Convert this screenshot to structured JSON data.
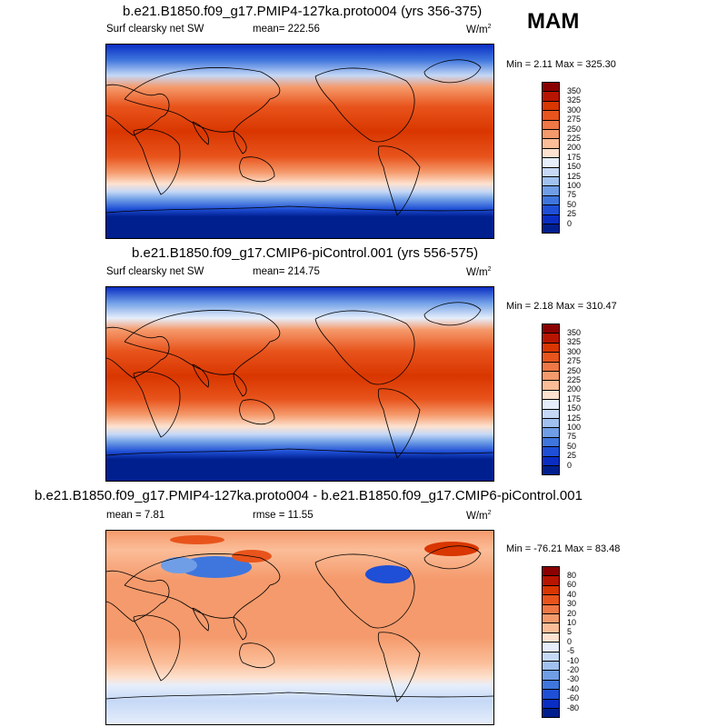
{
  "season": "MAM",
  "panels": [
    {
      "title": "b.e21.B1850.f09_g17.PMIP4-127ka.proto004 (yrs 356-375)",
      "left_label": "Surf clearsky net SW",
      "center_label": "mean= 222.56",
      "units": "W/m",
      "units_exp": "2",
      "minmax": "Min =   2.11 Max = 325.30",
      "colorbar": {
        "labels": [
          "350",
          "325",
          "300",
          "275",
          "250",
          "225",
          "200",
          "175",
          "150",
          "125",
          "100",
          "75",
          "50",
          "25",
          "0"
        ],
        "colors": [
          "#8b0000",
          "#b81500",
          "#d93600",
          "#e8541c",
          "#f07746",
          "#f59a6c",
          "#fbbd98",
          "#fde2d0",
          "#e6eefb",
          "#c5d8f6",
          "#a1c1f0",
          "#6f9ee6",
          "#3f76dd",
          "#1f4fd6",
          "#0a2ec4",
          "#001f8f"
        ]
      }
    },
    {
      "title": "b.e21.B1850.f09_g17.CMIP6-piControl.001 (yrs 556-575)",
      "left_label": "Surf clearsky net SW",
      "center_label": "mean= 214.75",
      "units": "W/m",
      "units_exp": "2",
      "minmax": "Min =   2.18 Max = 310.47",
      "colorbar": {
        "labels": [
          "350",
          "325",
          "300",
          "275",
          "250",
          "225",
          "200",
          "175",
          "150",
          "125",
          "100",
          "75",
          "50",
          "25",
          "0"
        ],
        "colors": [
          "#8b0000",
          "#b81500",
          "#d93600",
          "#e8541c",
          "#f07746",
          "#f59a6c",
          "#fbbd98",
          "#fde2d0",
          "#e6eefb",
          "#c5d8f6",
          "#a1c1f0",
          "#6f9ee6",
          "#3f76dd",
          "#1f4fd6",
          "#0a2ec4",
          "#001f8f"
        ]
      }
    },
    {
      "title": "b.e21.B1850.f09_g17.PMIP4-127ka.proto004 - b.e21.B1850.f09_g17.CMIP6-piControl.001",
      "left_label": "mean =   7.81",
      "center_label": "rmse =  11.55",
      "units": "W/m",
      "units_exp": "2",
      "minmax": "Min = -76.21 Max =  83.48",
      "colorbar": {
        "labels": [
          "80",
          "60",
          "40",
          "30",
          "20",
          "10",
          "5",
          "0",
          "-5",
          "-10",
          "-20",
          "-30",
          "-40",
          "-60",
          "-80"
        ],
        "colors": [
          "#8b0000",
          "#b81500",
          "#d93600",
          "#e8541c",
          "#f07746",
          "#f59a6c",
          "#fbbd98",
          "#fde2d0",
          "#e6eefb",
          "#c5d8f6",
          "#a1c1f0",
          "#6f9ee6",
          "#3f76dd",
          "#1f4fd6",
          "#0a2ec4",
          "#001f8f"
        ]
      }
    }
  ]
}
